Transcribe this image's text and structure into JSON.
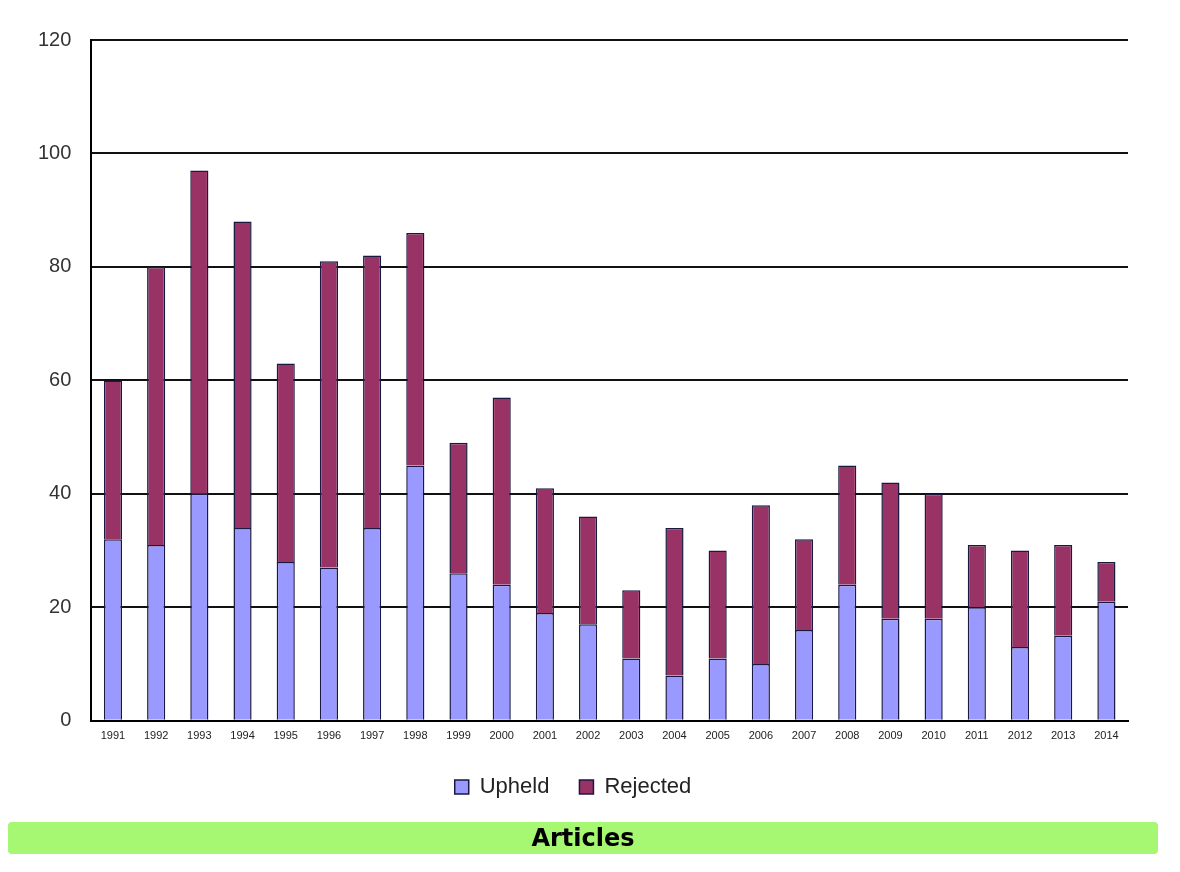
{
  "chart_data": {
    "type": "bar",
    "stacked": true,
    "categories": [
      "1991",
      "1992",
      "1993",
      "1994",
      "1995",
      "1996",
      "1997",
      "1998",
      "1999",
      "2000",
      "2001",
      "2002",
      "2003",
      "2004",
      "2005",
      "2006",
      "2007",
      "2008",
      "2009",
      "2010",
      "2011",
      "2012",
      "2013",
      "2014"
    ],
    "series": [
      {
        "name": "Upheld",
        "color": "#9999ff",
        "values": [
          32,
          31,
          40,
          34,
          28,
          27,
          34,
          45,
          26,
          24,
          19,
          17,
          11,
          8,
          11,
          10,
          16,
          24,
          18,
          18,
          20,
          13,
          15,
          21
        ]
      },
      {
        "name": "Rejected",
        "color": "#993366",
        "values": [
          28,
          49,
          57,
          54,
          35,
          54,
          48,
          41,
          23,
          33,
          22,
          19,
          12,
          26,
          19,
          28,
          16,
          21,
          24,
          22,
          11,
          17,
          16,
          7
        ]
      }
    ],
    "ylim": [
      0,
      120
    ],
    "yticks": [
      0,
      20,
      40,
      60,
      80,
      100,
      120
    ],
    "grid": "y",
    "legend": "bottom",
    "annotations": [
      "Articles"
    ]
  }
}
